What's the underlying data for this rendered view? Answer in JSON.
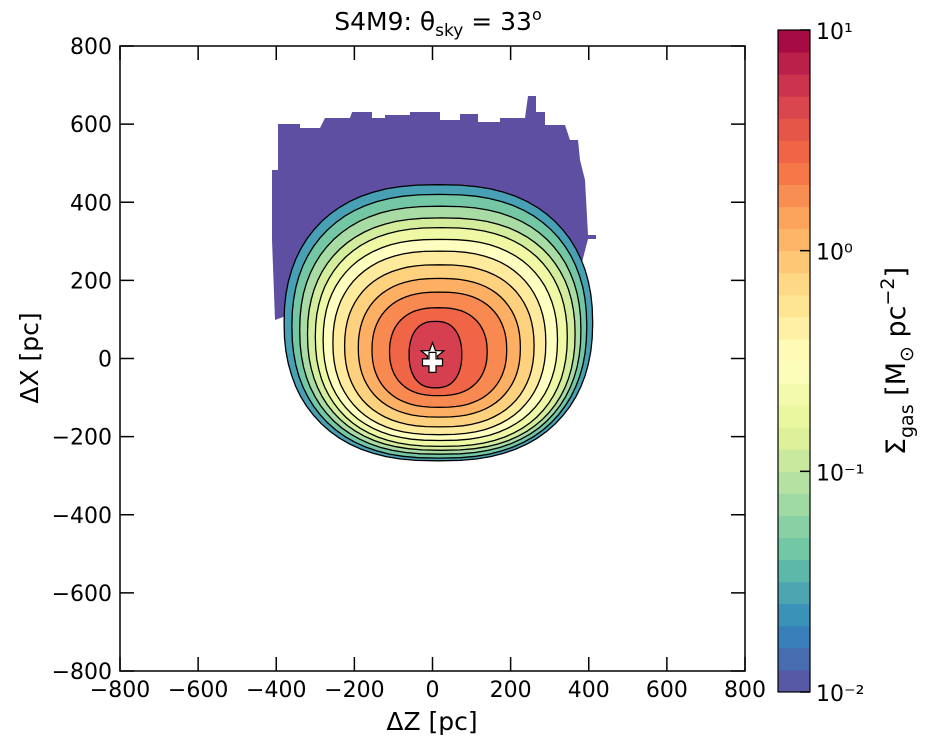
{
  "chart_data": {
    "type": "contour",
    "title_parts": [
      "S4M9:  θ",
      "sky",
      " = 33",
      "o"
    ],
    "xlabel": "ΔZ [pc]",
    "ylabel": "ΔX [pc]",
    "xlim": [
      -800,
      800
    ],
    "ylim": [
      -800,
      800
    ],
    "xticks": [
      {
        "value": -800,
        "label": "−800"
      },
      {
        "value": -600,
        "label": "−600"
      },
      {
        "value": -400,
        "label": "−400"
      },
      {
        "value": -200,
        "label": "−200"
      },
      0,
      200,
      400,
      600,
      800
    ],
    "yticks": [
      {
        "value": -800,
        "label": "−800"
      },
      {
        "value": -600,
        "label": "−600"
      },
      {
        "value": -400,
        "label": "−400"
      },
      {
        "value": -200,
        "label": "−200"
      },
      0,
      200,
      400,
      600,
      800
    ],
    "colorbar": {
      "label_parts": [
        "Σ",
        "gas",
        " [M",
        "⊙",
        " pc",
        "−2",
        "]"
      ],
      "lim": [
        0.01,
        10
      ],
      "scale": "log",
      "ticks": [
        {
          "value": 0.01,
          "label": "10⁻²"
        },
        {
          "value": 0.1,
          "label": "10⁻¹"
        },
        {
          "value": 1,
          "label": "10⁰"
        },
        {
          "value": 10,
          "label": "10¹"
        }
      ],
      "colors": [
        "#5e4fa2",
        "#3288bd",
        "#66c2a5",
        "#abdda4",
        "#e6f598",
        "#ffffbf",
        "#fee08b",
        "#fdae61",
        "#f46d43",
        "#d53e4f",
        "#9e0142"
      ]
    },
    "contours": [
      {
        "level": 0.02,
        "x": [
          -380,
          410
        ],
        "y": [
          -262,
          445
        ]
      },
      {
        "level": 0.035,
        "x": [
          -360,
          395
        ],
        "y": [
          -255,
          420
        ]
      },
      {
        "level": 0.06,
        "x": [
          -340,
          380
        ],
        "y": [
          -245,
          390
        ]
      },
      {
        "level": 0.1,
        "x": [
          -320,
          365
        ],
        "y": [
          -235,
          360
        ]
      },
      {
        "level": 0.16,
        "x": [
          -300,
          345
        ],
        "y": [
          -225,
          335
        ]
      },
      {
        "level": 0.25,
        "x": [
          -280,
          320
        ],
        "y": [
          -210,
          305
        ]
      },
      {
        "level": 0.4,
        "x": [
          -255,
          290
        ],
        "y": [
          -195,
          275
        ]
      },
      {
        "level": 0.6,
        "x": [
          -225,
          260
        ],
        "y": [
          -175,
          240
        ]
      },
      {
        "level": 1.0,
        "x": [
          -190,
          225
        ],
        "y": [
          -150,
          205
        ]
      },
      {
        "level": 1.5,
        "x": [
          -155,
          190
        ],
        "y": [
          -125,
          170
        ]
      },
      {
        "level": 2.3,
        "x": [
          -110,
          140
        ],
        "y": [
          -95,
          130
        ]
      },
      {
        "level": 3.5,
        "x": [
          -60,
          75
        ],
        "y": [
          -75,
          95
        ]
      }
    ],
    "markers": [
      {
        "symbol": "star",
        "x": 0,
        "y": 10
      },
      {
        "symbol": "plus",
        "x": 0,
        "y": -10
      }
    ]
  }
}
